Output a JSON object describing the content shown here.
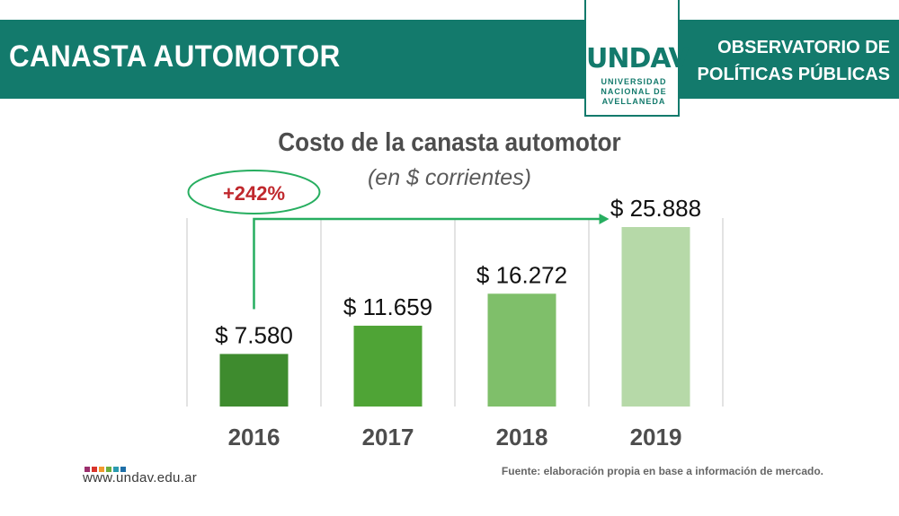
{
  "header": {
    "title": "CANASTA AUTOMOTOR",
    "observatorio_line1": "OBSERVATORIO DE",
    "observatorio_line2": "POLÍTICAS PÚBLICAS",
    "bar_color": "#137a6c"
  },
  "logo": {
    "mark": "UNDAV",
    "line1": "UNIVERSIDAD",
    "line2": "NACIONAL DE",
    "line3": "AVELLANEDA"
  },
  "chart_data": {
    "type": "bar",
    "title": "Costo de la canasta automotor",
    "subtitle": "(en $ corrientes)",
    "categories": [
      "2016",
      "2017",
      "2018",
      "2019"
    ],
    "values": [
      7580,
      11659,
      16272,
      25888
    ],
    "value_labels": [
      "$ 7.580",
      "$ 11.659",
      "$ 16.272",
      "$ 25.888"
    ],
    "bar_colors": [
      "#3e8b2e",
      "#4fa436",
      "#7fbf6a",
      "#b6d9a8"
    ],
    "annotation": "+242%",
    "annotation_color": "#c0282d",
    "arrow_color": "#27ae60",
    "grid": true,
    "xlabel": "",
    "ylabel": "",
    "ylim": [
      0,
      28000
    ]
  },
  "footer": {
    "url": "www.undav.edu.ar",
    "source": "Fuente: elaboración propia en base a información de mercado.",
    "dot_colors": [
      "#9b2f6d",
      "#d9342b",
      "#f29a2e",
      "#6cae3e",
      "#2a9bb0",
      "#1f6fa8"
    ]
  }
}
